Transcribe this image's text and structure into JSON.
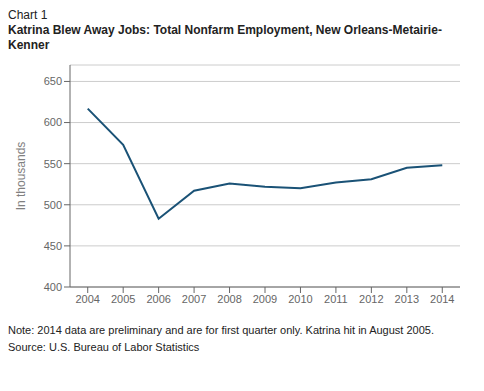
{
  "chart_data": {
    "type": "line",
    "title": "Chart 1",
    "subtitle": "Katrina Blew Away Jobs: Total Nonfarm Employment, New Orleans-Metairie-Kenner",
    "x": [
      2004,
      2005,
      2006,
      2007,
      2008,
      2009,
      2010,
      2011,
      2012,
      2013,
      2014
    ],
    "values": [
      617,
      573,
      483,
      517,
      526,
      522,
      520,
      527,
      531,
      545,
      548
    ],
    "color": "#1a5276",
    "ylabel": "In thousands",
    "xlim": [
      2003.5,
      2014.5
    ],
    "xticks": [
      2004,
      2005,
      2006,
      2007,
      2008,
      2009,
      2010,
      2011,
      2012,
      2013,
      2014
    ],
    "ylim": [
      400,
      670
    ],
    "yticks": [
      400,
      450,
      500,
      550,
      600,
      650
    ],
    "grid": true,
    "annotations": [
      "Note: 2014 data are preliminary and are for first quarter only. Katrina hit in August 2005.",
      "Source: U.S. Bureau of Labor Statistics"
    ]
  }
}
